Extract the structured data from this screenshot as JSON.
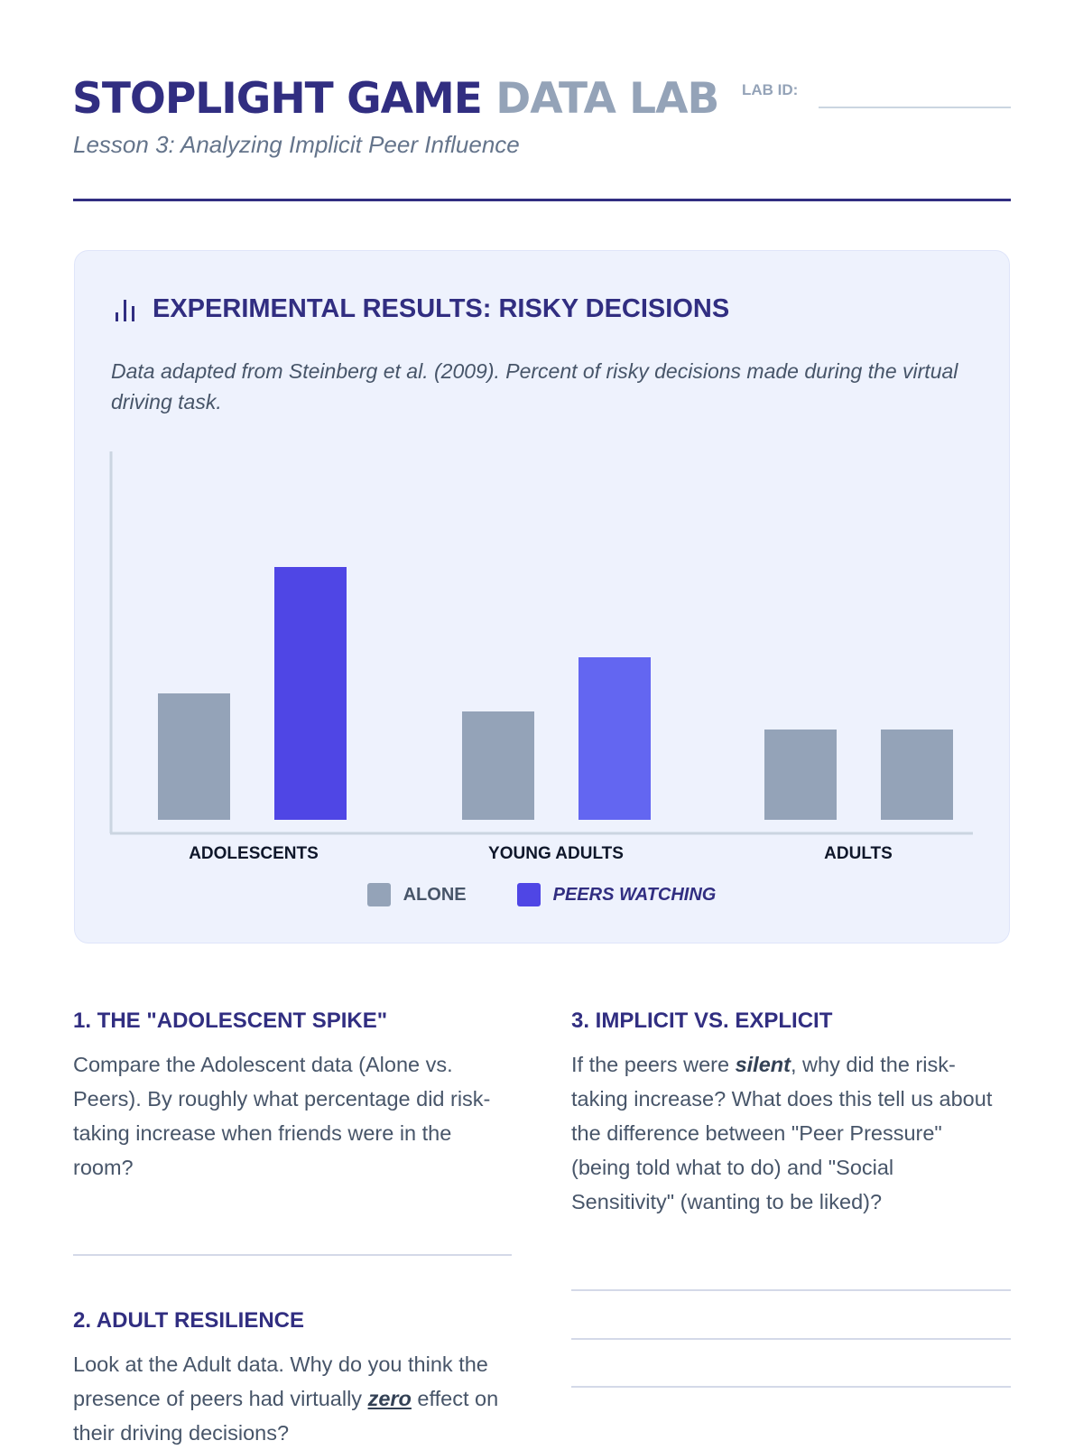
{
  "header": {
    "title_part1": "STOPLIGHT GAME",
    "title_part2": "DATA LAB",
    "lab_id_label": "LAB ID:",
    "subtitle": "Lesson 3: Analyzing Implicit Peer Influence"
  },
  "card": {
    "icon": "bar-chart-icon",
    "title": "EXPERIMENTAL RESULTS: RISKY DECISIONS",
    "note": "Data adapted from Steinberg et al. (2009). Percent of risky decisions made during the virtual driving task."
  },
  "chart_data": {
    "type": "bar",
    "title": "EXPERIMENTAL RESULTS: RISKY DECISIONS",
    "categories": [
      "ADOLESCENTS",
      "YOUNG ADULTS",
      "ADULTS"
    ],
    "series": [
      {
        "name": "ALONE",
        "values": [
          28,
          24,
          20
        ],
        "colors": [
          "#94a3b8",
          "#94a3b8",
          "#94a3b8"
        ]
      },
      {
        "name": "PEERS WATCHING",
        "values": [
          56,
          36,
          20
        ],
        "colors": [
          "#4f46e5",
          "#6366f1",
          "#94a3b8"
        ]
      }
    ],
    "xlabel": "",
    "ylabel": "Percent of risky decisions",
    "ylim": [
      0,
      80
    ],
    "grid": false,
    "legend": "bottom-center",
    "legend_colors": [
      "#94a3b8",
      "#4f46e5"
    ]
  },
  "questions": [
    {
      "title": "1. THE \"ADOLESCENT SPIKE\"",
      "text": "Compare the Adolescent data (Alone vs. Peers). By roughly what percentage did risk-taking increase when friends were in the room?"
    },
    {
      "title": "2. ADULT RESILIENCE",
      "text_before": "Look at the Adult data. Why do you think the presence of peers had virtually ",
      "emphasis": "zero",
      "text_after": " effect on their driving decisions?"
    },
    {
      "title": "3. IMPLICIT VS. EXPLICIT",
      "text_before": "If the peers were ",
      "emphasis": "silent",
      "text_after": ", why did the risk-taking increase? What does this tell us about the difference between \"Peer Pressure\" (being told what to do) and \"Social Sensitivity\" (wanting to be liked)?"
    }
  ]
}
